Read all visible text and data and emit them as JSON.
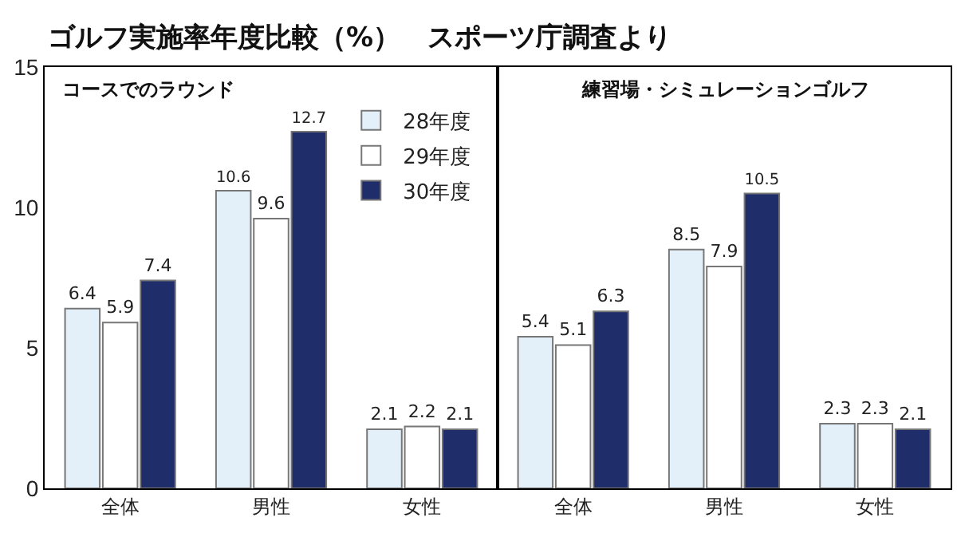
{
  "chart_data": [
    {
      "type": "bar",
      "title": "ゴルフ実施率年度比較（%）　スポーツ庁調査より",
      "subtitle": "コースでのラウンド",
      "categories": [
        "全体",
        "男性",
        "女性"
      ],
      "series": [
        {
          "name": "28年度",
          "color": "#e3f0fa",
          "values": [
            6.4,
            10.6,
            2.1
          ]
        },
        {
          "name": "29年度",
          "color": "#ffffff",
          "values": [
            5.9,
            9.6,
            2.2
          ]
        },
        {
          "name": "30年度",
          "color": "#1f2d6b",
          "values": [
            7.4,
            12.7,
            2.1
          ]
        }
      ],
      "ylim": [
        0,
        15
      ],
      "yticks": [
        0,
        5,
        10,
        15
      ],
      "data_labels": true,
      "legend": "top right",
      "grid": false
    },
    {
      "type": "bar",
      "title": "練習場・シミュレーションゴルフ",
      "categories": [
        "全体",
        "男性",
        "女性"
      ],
      "series": [
        {
          "color": "#e3f0fa",
          "values": [
            5.4,
            8.5,
            2.3
          ]
        },
        {
          "color": "#ffffff",
          "values": [
            5.1,
            7.9,
            2.3
          ]
        },
        {
          "color": "#1f2d6b",
          "values": [
            6.3,
            10.5,
            2.1
          ]
        }
      ],
      "ylim": [
        0,
        15
      ],
      "yticks": [
        0,
        5,
        10,
        15
      ],
      "data_labels": true,
      "tick_labels": "x",
      "grid": false
    }
  ]
}
